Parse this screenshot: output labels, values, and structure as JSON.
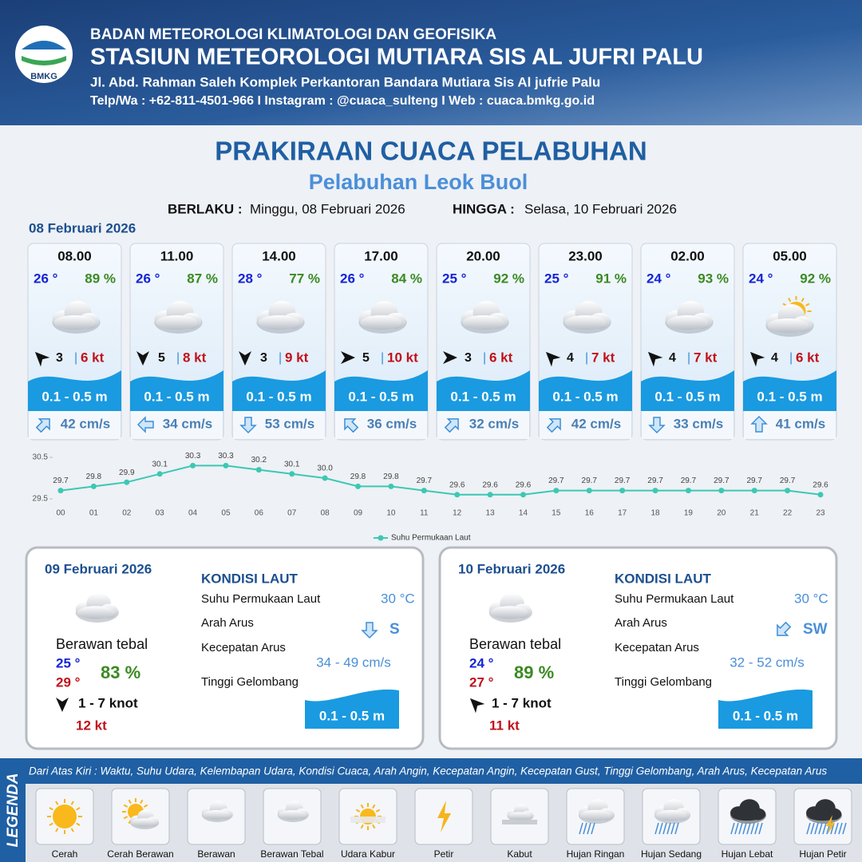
{
  "header": {
    "agency": "BADAN METEOROLOGI KLIMATOLOGI DAN GEOFISIKA",
    "station": "STASIUN METEOROLOGI MUTIARA SIS AL JUFRI PALU",
    "address": "Jl. Abd. Rahman Saleh Komplek Perkantoran Bandara Mutiara Sis Al jufrie Palu",
    "contact": "Telp/Wa : +62-811-4501-966  I  Instagram : @cuaca_sulteng  I  Web : cuaca.bmkg.go.id",
    "logo": "BMKG"
  },
  "title": "PRAKIRAAN CUACA PELABUHAN",
  "subtitle": "Pelabuhan Leok Buol",
  "validity": {
    "from_label": "BERLAKU :",
    "from": "Minggu, 08 Februari 2026",
    "to_label": "HINGGA :",
    "to": "Selasa, 10 Februari 2026"
  },
  "day1": {
    "date": "08 Februari 2026",
    "slots": [
      {
        "time": "08.00",
        "temp": "26 °",
        "humidity": "89 %",
        "wind": "3",
        "sep": "|",
        "gust": "6 kt",
        "wave": "0.1 - 0.5 m",
        "current": "42 cm/s"
      },
      {
        "time": "11.00",
        "temp": "26 °",
        "humidity": "87 %",
        "wind": "5",
        "sep": "|",
        "gust": "8 kt",
        "wave": "0.1 - 0.5 m",
        "current": "34 cm/s"
      },
      {
        "time": "14.00",
        "temp": "28 °",
        "humidity": "77 %",
        "wind": "3",
        "sep": "|",
        "gust": "9 kt",
        "wave": "0.1 - 0.5 m",
        "current": "53 cm/s"
      },
      {
        "time": "17.00",
        "temp": "26 °",
        "humidity": "84 %",
        "wind": "5",
        "sep": "|",
        "gust": "10 kt",
        "wave": "0.1 - 0.5 m",
        "current": "36 cm/s"
      },
      {
        "time": "20.00",
        "temp": "25 °",
        "humidity": "92 %",
        "wind": "3",
        "sep": "|",
        "gust": "6 kt",
        "wave": "0.1 - 0.5 m",
        "current": "32 cm/s"
      },
      {
        "time": "23.00",
        "temp": "25 °",
        "humidity": "91 %",
        "wind": "4",
        "sep": "|",
        "gust": "7 kt",
        "wave": "0.1 - 0.5 m",
        "current": "42 cm/s"
      },
      {
        "time": "02.00",
        "temp": "24 °",
        "humidity": "93 %",
        "wind": "4",
        "sep": "|",
        "gust": "7 kt",
        "wave": "0.1 - 0.5 m",
        "current": "33 cm/s"
      },
      {
        "time": "05.00",
        "temp": "24 °",
        "humidity": "92 %",
        "wind": "4",
        "sep": "|",
        "gust": "6 kt",
        "wave": "0.1 - 0.5 m",
        "current": "41 cm/s"
      }
    ]
  },
  "chart_data": {
    "type": "line",
    "categories": [
      "00",
      "01",
      "02",
      "03",
      "04",
      "05",
      "06",
      "07",
      "08",
      "09",
      "10",
      "11",
      "12",
      "13",
      "14",
      "15",
      "16",
      "17",
      "18",
      "19",
      "20",
      "21",
      "22",
      "23"
    ],
    "series": [
      {
        "name": "Suhu Permukaan Laut",
        "color": "#3cc8b4",
        "values": [
          29.7,
          29.8,
          29.9,
          30.1,
          30.3,
          30.3,
          30.2,
          30.1,
          30.0,
          29.8,
          29.8,
          29.7,
          29.6,
          29.6,
          29.6,
          29.7,
          29.7,
          29.7,
          29.7,
          29.7,
          29.7,
          29.7,
          29.7,
          29.6
        ],
        "value_labels": [
          "29.7",
          "29.8",
          "29.9",
          "30.1",
          "30.3",
          "30.3",
          "30.2",
          "30.1",
          "30.0",
          "29.8",
          "29.8",
          "29.7",
          "29.6",
          "29.6",
          "29.6",
          "29.7",
          "29.7",
          "29.7",
          "29.7",
          "29.7",
          "29.7",
          "29.7",
          "29.7",
          "29.6"
        ]
      }
    ],
    "ylim": [
      29.5,
      30.5
    ],
    "yticks": [
      29.5,
      30.5
    ],
    "legend": "bottom"
  },
  "days": [
    {
      "date": "09 Februari 2026",
      "condition": "Berawan tebal",
      "tmin": "25 °",
      "tmax": "29 °",
      "humidity": "83 %",
      "wind": "1 - 7 knot",
      "gust": "12 kt",
      "sea_title": "KONDISI LAUT",
      "sst_label": "Suhu Permukaan Laut",
      "sst": "30 °C",
      "dir_label": "Arah Arus",
      "dir": "S",
      "speed_label": "Kecepatan Arus",
      "speed": "34 - 49 cm/s",
      "wave_label": "Tinggi Gelombang",
      "wave": "0.1 - 0.5 m"
    },
    {
      "date": "10 Februari 2026",
      "condition": "Berawan tebal",
      "tmin": "24 °",
      "tmax": "27 °",
      "humidity": "89 %",
      "wind": "1 - 7 knot",
      "gust": "11 kt",
      "sea_title": "KONDISI LAUT",
      "sst_label": "Suhu Permukaan Laut",
      "sst": "30 °C",
      "dir_label": "Arah Arus",
      "dir": "SW",
      "speed_label": "Kecepatan Arus",
      "speed": "32 - 52 cm/s",
      "wave_label": "Tinggi Gelombang",
      "wave": "0.1 - 0.5 m"
    }
  ],
  "legend": {
    "title": "LEGENDA",
    "description": "Dari Atas Kiri : Waktu, Suhu Udara, Kelembapan Udara, Kondisi Cuaca, Arah Angin, Kecepatan Angin, Kecepatan Gust, Tinggi Gelombang, Arah Arus, Kecepatan Arus",
    "items": [
      "Cerah",
      "Cerah Berawan",
      "Berawan",
      "Berawan Tebal",
      "Udara Kabur",
      "Petir",
      "Kabut",
      "Hujan Ringan",
      "Hujan Sedang",
      "Hujan Lebat",
      "Hujan Petir"
    ]
  }
}
